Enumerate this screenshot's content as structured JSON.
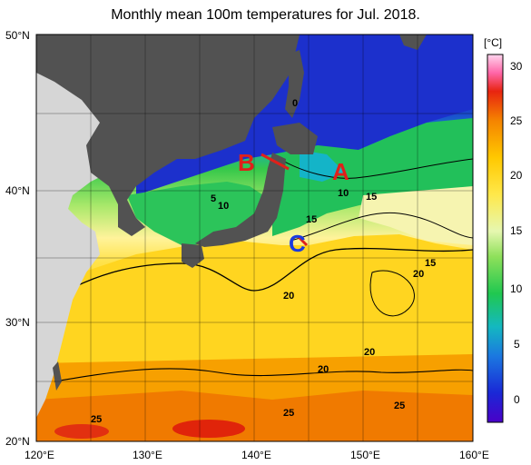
{
  "title": "Monthly mean 100m temperatures for Jul. 2018.",
  "lat_labels": [
    "50°N",
    "40°N",
    "30°N",
    "20°N"
  ],
  "lon_labels": [
    "120°E",
    "130°E",
    "140°E",
    "150°E",
    "160°E"
  ],
  "contour_labels": [
    "0",
    "5",
    "10",
    "10",
    "15",
    "15",
    "15",
    "20",
    "20",
    "20",
    "20",
    "25",
    "25",
    "25"
  ],
  "markers": {
    "a": "A",
    "b": "B",
    "c": "C"
  },
  "colorbar": {
    "unit": "[°C]",
    "ticks": [
      "30",
      "25",
      "20",
      "15",
      "10",
      "5",
      "0"
    ]
  },
  "colors": {
    "land": "#525252",
    "land_outside": "#d6d6d6",
    "cold": "#1f2fc8",
    "warm": "#f0a800",
    "marker": "#e0201a"
  },
  "map_data": {
    "lon_range": [
      120,
      160
    ],
    "lat_range": [
      20,
      50
    ],
    "region": "Western North Pacific around Japan"
  }
}
